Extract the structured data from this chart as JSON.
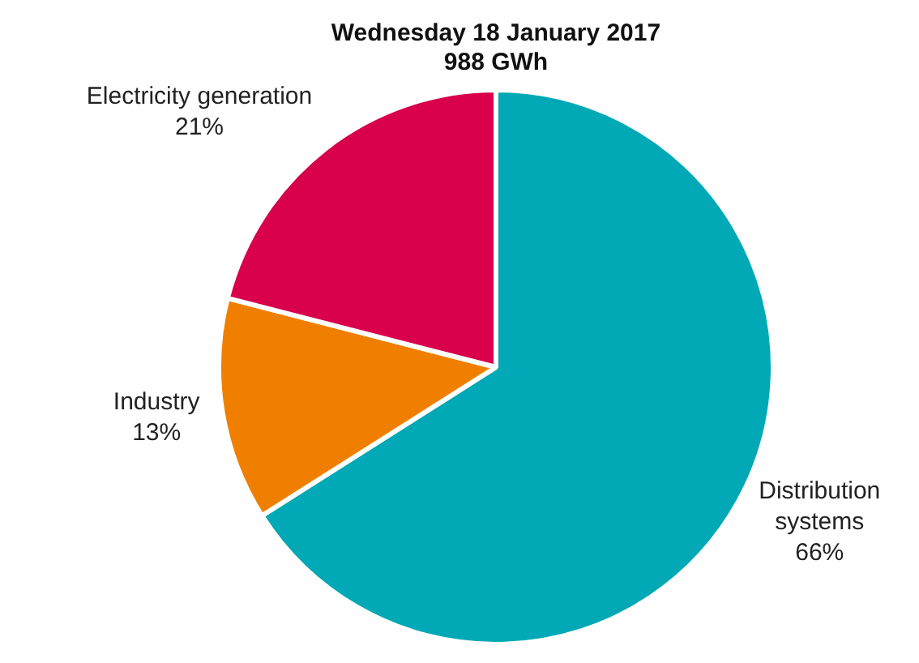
{
  "chart_data": {
    "type": "pie",
    "title": "Wednesday 18 January 2017",
    "subtitle": "988 GWh",
    "categories": [
      "Distribution systems",
      "Industry",
      "Electricity generation"
    ],
    "values": [
      66,
      13,
      21
    ],
    "colors": [
      "#00a9b5",
      "#f07f00",
      "#d9004c"
    ],
    "value_labels": [
      "66%",
      "13%",
      "21%"
    ],
    "legend": false
  }
}
